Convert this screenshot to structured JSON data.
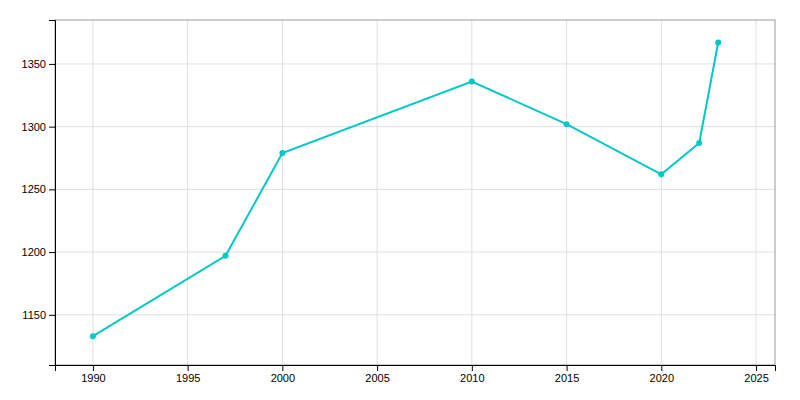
{
  "chart_data": {
    "type": "line",
    "x": [
      1990,
      1997,
      2000,
      2010,
      2015,
      2020,
      2022,
      2023
    ],
    "values": [
      1133,
      1197,
      1279,
      1336,
      1302,
      1262,
      1287,
      1367
    ],
    "color": "#00C8C8",
    "marker": "circle",
    "xlim": [
      1988,
      2026
    ],
    "ylim": [
      1110,
      1385
    ],
    "xticks": [
      1990,
      1995,
      2000,
      2005,
      2010,
      2015,
      2020,
      2025
    ],
    "yticks": [
      1150,
      1200,
      1250,
      1300,
      1350
    ],
    "grid": true
  }
}
